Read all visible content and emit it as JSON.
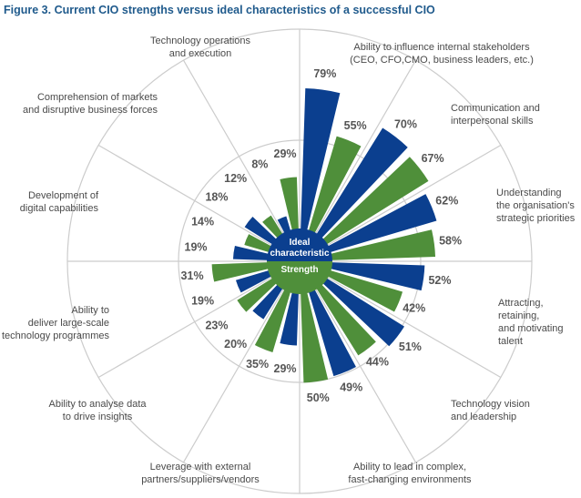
{
  "figure_title": "Figure 3. Current CIO strengths versus ideal characteristics of a successful CIO",
  "colors": {
    "ideal": "#0b3f8f",
    "strength": "#4f8f3a",
    "grid": "#cccccc",
    "label": "#555555",
    "title": "#1f5a8c"
  },
  "chart_data": {
    "type": "polar-bar",
    "title": "Figure 3. Current CIO strengths versus ideal characteristics of a successful CIO",
    "legend": [
      "Ideal characteristic",
      "Strength"
    ],
    "categories": [
      {
        "label": [
          "Ability to influence internal stakeholders",
          "(CEO, CFO,CMO, business leaders, etc.)"
        ],
        "ideal": 79,
        "strength": 55
      },
      {
        "label": [
          "Communication and",
          "interpersonal skills"
        ],
        "ideal": 70,
        "strength": 67
      },
      {
        "label": [
          "Understanding",
          "the organisation's",
          "strategic priorities"
        ],
        "ideal": 62,
        "strength": 58
      },
      {
        "label": [
          "Attracting,",
          "retaining,",
          "and motivating",
          "talent"
        ],
        "ideal": 52,
        "strength": 42
      },
      {
        "label": [
          "Technology vision",
          "and leadership"
        ],
        "ideal": 51,
        "strength": 44
      },
      {
        "label": [
          "Ability to lead in complex,",
          "fast-changing environments"
        ],
        "ideal": 49,
        "strength": 50
      },
      {
        "label": [
          "Leverage with external",
          "partners/suppliers/vendors"
        ],
        "ideal": 29,
        "strength": 35
      },
      {
        "label": [
          "Ability to analyse data",
          "to drive insights"
        ],
        "ideal": 20,
        "strength": 23
      },
      {
        "label": [
          "Ability to",
          "deliver large-scale",
          "technology programmes"
        ],
        "ideal": 19,
        "strength": 31
      },
      {
        "label": [
          "Development of",
          "digital capabilities"
        ],
        "ideal": 19,
        "strength": 14
      },
      {
        "label": [
          "Comprehension of markets",
          "and disruptive business forces"
        ],
        "ideal": 18,
        "strength": 12
      },
      {
        "label": [
          "Technology operations",
          "and execution"
        ],
        "ideal": 8,
        "strength": 29
      }
    ],
    "value_suffix": "%",
    "rmax": 100
  }
}
